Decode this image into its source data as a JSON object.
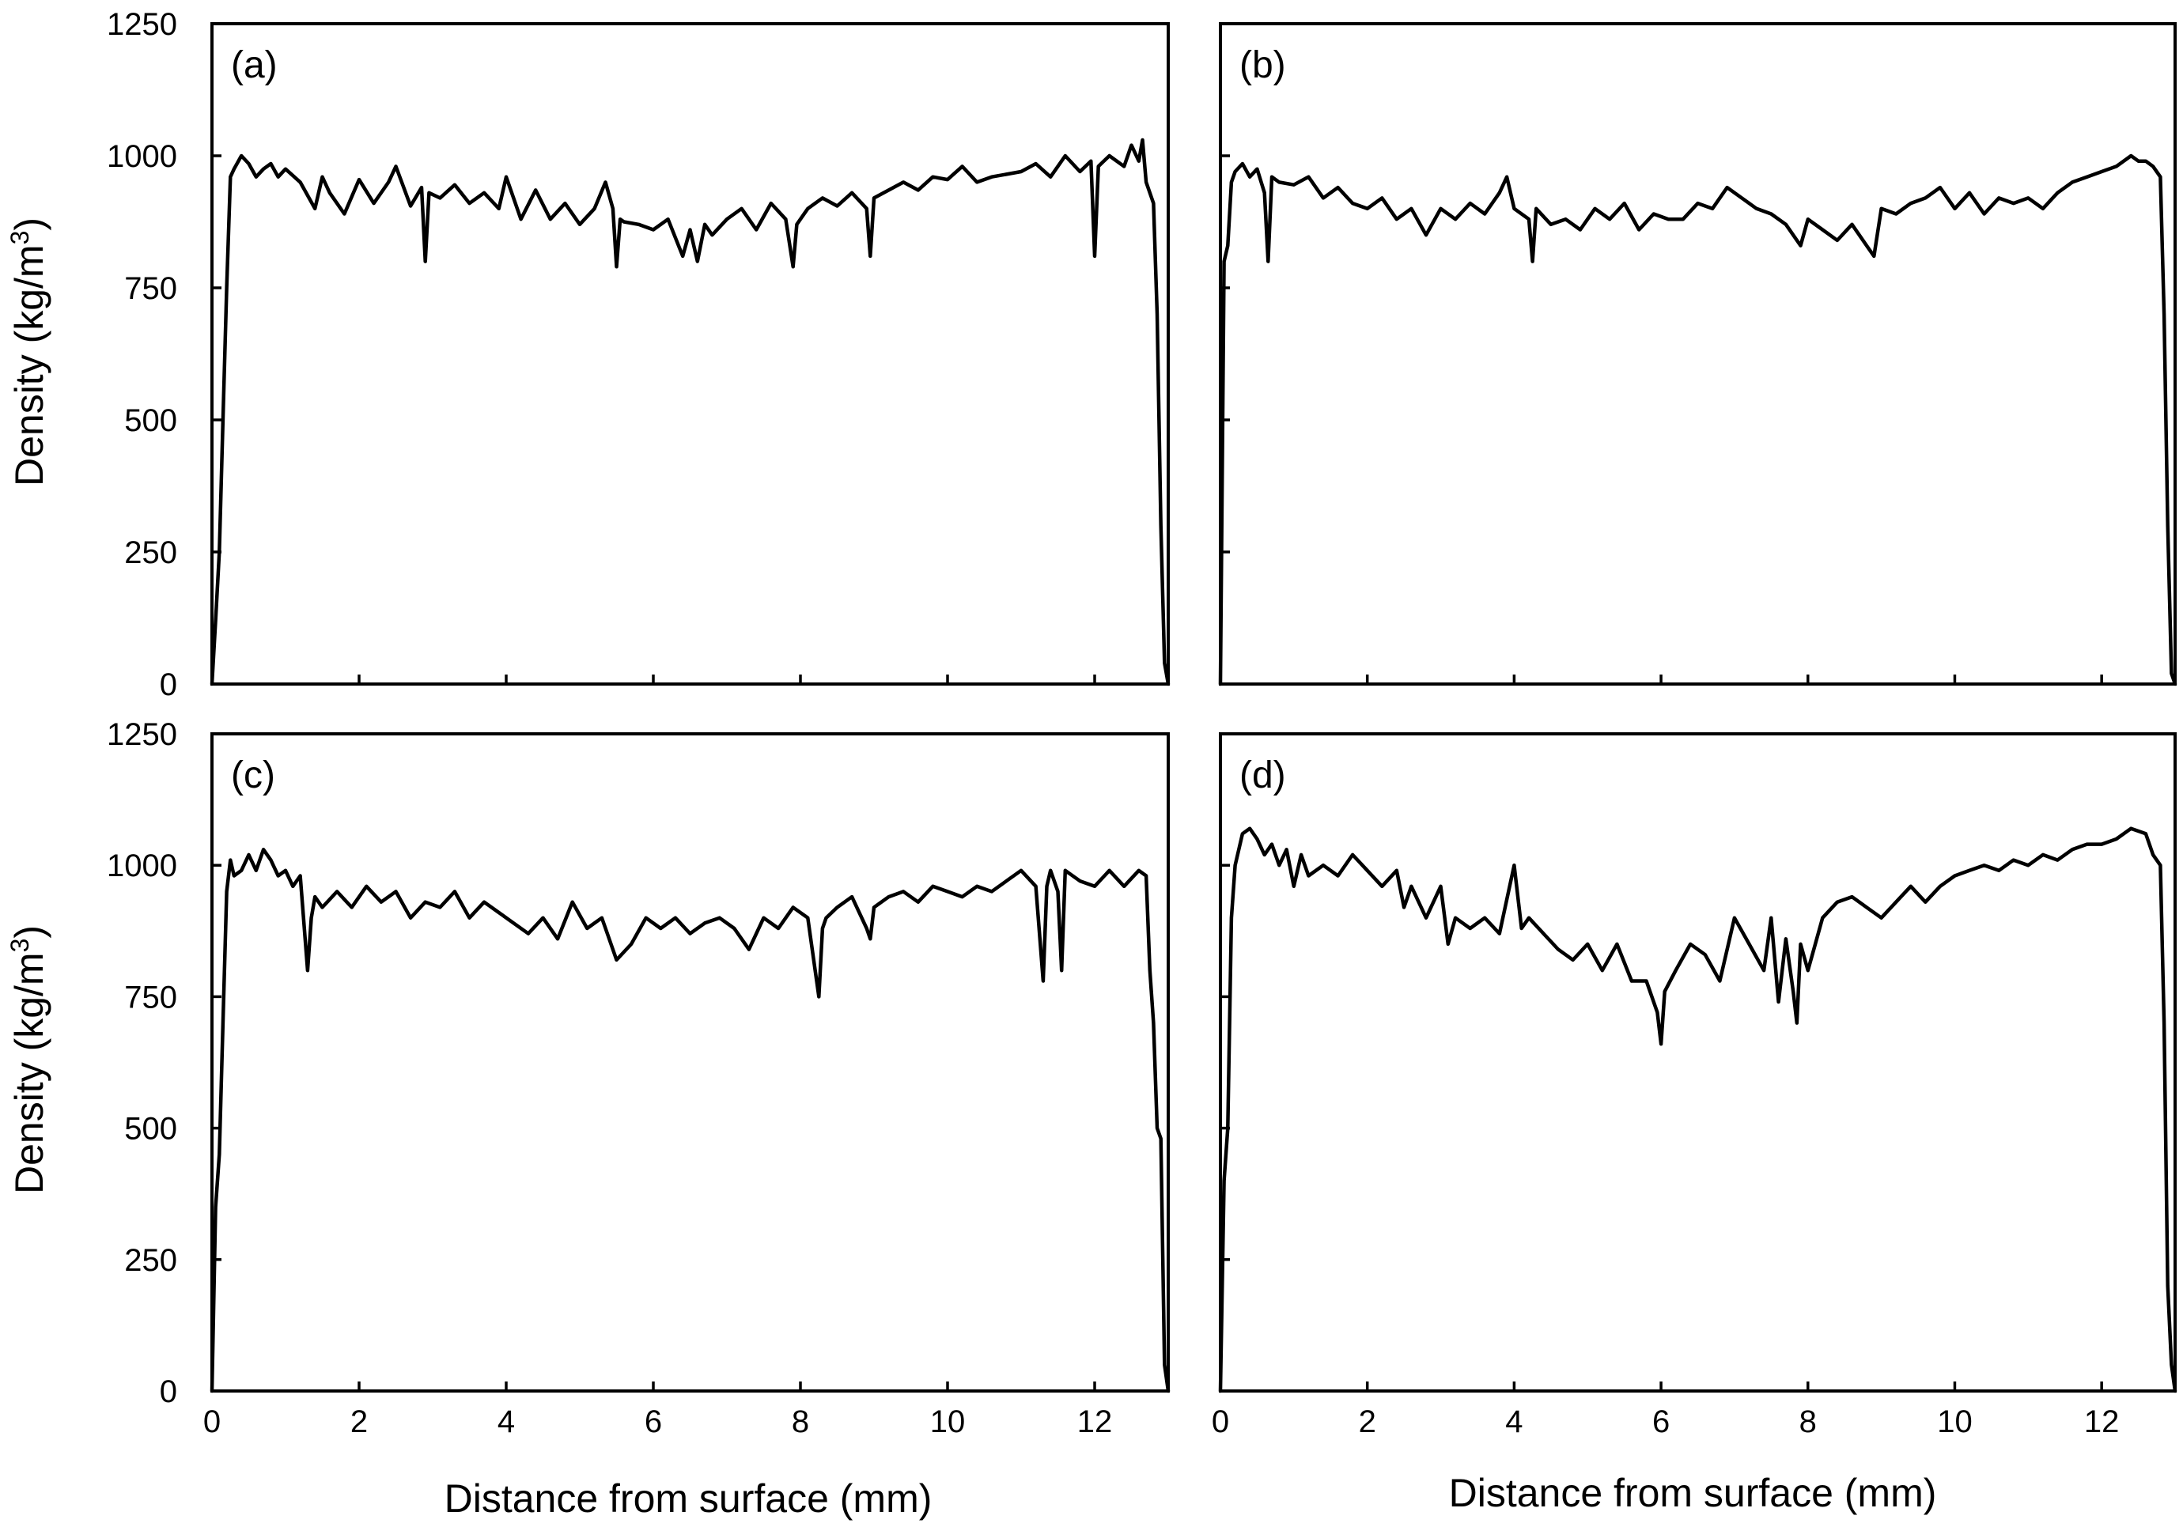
{
  "figure": {
    "xlabel": "Distance from surface (mm)",
    "ylabel_main": "Density (kg/m",
    "ylabel_sup": "3",
    "ylabel_end": ")"
  },
  "chart_data": [
    {
      "id": "a",
      "panel_label": "(a)",
      "type": "line",
      "xlabel": "",
      "ylabel": "Density (kg/m3)",
      "xlim": [
        0,
        13
      ],
      "ylim": [
        0,
        1250
      ],
      "xticks": [
        0,
        2,
        4,
        6,
        8,
        10,
        12
      ],
      "yticks": [
        0,
        250,
        500,
        750,
        1000,
        1250
      ],
      "show_xtick_labels": false,
      "show_ytick_labels": true,
      "series": [
        {
          "x": [
            0.0,
            0.05,
            0.1,
            0.15,
            0.2,
            0.25,
            0.3,
            0.4,
            0.5,
            0.6,
            0.7,
            0.8,
            0.9,
            1.0,
            1.2,
            1.4,
            1.5,
            1.6,
            1.8,
            2.0,
            2.2,
            2.4,
            2.5,
            2.7,
            2.85,
            2.9,
            2.95,
            3.1,
            3.3,
            3.5,
            3.7,
            3.9,
            4.0,
            4.2,
            4.4,
            4.6,
            4.8,
            5.0,
            5.2,
            5.35,
            5.45,
            5.5,
            5.55,
            5.6,
            5.8,
            6.0,
            6.2,
            6.4,
            6.5,
            6.6,
            6.7,
            6.8,
            7.0,
            7.2,
            7.4,
            7.6,
            7.8,
            7.9,
            7.95,
            8.1,
            8.3,
            8.5,
            8.7,
            8.9,
            8.95,
            9.0,
            9.2,
            9.4,
            9.6,
            9.8,
            10.0,
            10.2,
            10.4,
            10.6,
            10.8,
            11.0,
            11.2,
            11.4,
            11.6,
            11.8,
            11.95,
            12.0,
            12.05,
            12.2,
            12.4,
            12.5,
            12.6,
            12.65,
            12.7,
            12.8,
            12.85,
            12.9,
            12.95,
            13.0
          ],
          "y": [
            0,
            120,
            250,
            500,
            750,
            960,
            975,
            1000,
            985,
            960,
            975,
            985,
            960,
            975,
            950,
            900,
            960,
            930,
            890,
            955,
            910,
            950,
            980,
            905,
            940,
            800,
            930,
            920,
            945,
            910,
            930,
            900,
            960,
            880,
            935,
            880,
            910,
            870,
            900,
            950,
            900,
            790,
            880,
            875,
            870,
            860,
            880,
            810,
            860,
            800,
            870,
            850,
            880,
            900,
            860,
            910,
            880,
            790,
            870,
            900,
            920,
            905,
            930,
            900,
            810,
            920,
            935,
            950,
            935,
            960,
            955,
            980,
            950,
            960,
            965,
            970,
            985,
            960,
            1000,
            970,
            990,
            810,
            980,
            1000,
            980,
            1020,
            990,
            1030,
            950,
            910,
            700,
            300,
            40,
            0
          ]
        }
      ]
    },
    {
      "id": "b",
      "panel_label": "(b)",
      "type": "line",
      "xlabel": "",
      "ylabel": "",
      "xlim": [
        0,
        13
      ],
      "ylim": [
        0,
        1250
      ],
      "xticks": [
        0,
        2,
        4,
        6,
        8,
        10,
        12
      ],
      "yticks": [
        0,
        250,
        500,
        750,
        1000,
        1250
      ],
      "show_xtick_labels": false,
      "show_ytick_labels": false,
      "series": [
        {
          "x": [
            0.0,
            0.05,
            0.1,
            0.15,
            0.2,
            0.3,
            0.4,
            0.5,
            0.6,
            0.65,
            0.7,
            0.8,
            1.0,
            1.2,
            1.4,
            1.6,
            1.8,
            2.0,
            2.2,
            2.4,
            2.6,
            2.8,
            3.0,
            3.2,
            3.4,
            3.6,
            3.8,
            3.9,
            4.0,
            4.2,
            4.25,
            4.3,
            4.5,
            4.7,
            4.9,
            5.1,
            5.3,
            5.5,
            5.7,
            5.9,
            6.1,
            6.3,
            6.5,
            6.7,
            6.9,
            7.1,
            7.3,
            7.5,
            7.7,
            7.9,
            8.0,
            8.2,
            8.4,
            8.6,
            8.8,
            8.9,
            9.0,
            9.2,
            9.4,
            9.6,
            9.8,
            10.0,
            10.2,
            10.4,
            10.6,
            10.8,
            11.0,
            11.2,
            11.4,
            11.6,
            11.8,
            12.0,
            12.2,
            12.4,
            12.5,
            12.6,
            12.7,
            12.8,
            12.85,
            12.9,
            12.95,
            13.0
          ],
          "y": [
            0,
            800,
            830,
            950,
            970,
            985,
            960,
            975,
            930,
            800,
            960,
            950,
            945,
            960,
            920,
            940,
            910,
            900,
            920,
            880,
            900,
            850,
            900,
            880,
            910,
            890,
            930,
            960,
            900,
            880,
            800,
            900,
            870,
            880,
            860,
            900,
            880,
            910,
            860,
            890,
            880,
            880,
            910,
            900,
            940,
            920,
            900,
            890,
            870,
            830,
            880,
            860,
            840,
            870,
            830,
            810,
            900,
            890,
            910,
            920,
            940,
            900,
            930,
            890,
            920,
            910,
            920,
            900,
            930,
            950,
            960,
            970,
            980,
            1000,
            990,
            990,
            980,
            960,
            700,
            300,
            20,
            0
          ]
        }
      ]
    },
    {
      "id": "c",
      "panel_label": "(c)",
      "type": "line",
      "xlabel": "Distance from surface (mm)",
      "ylabel": "Density (kg/m3)",
      "xlim": [
        0,
        13
      ],
      "ylim": [
        0,
        1250
      ],
      "xticks": [
        0,
        2,
        4,
        6,
        8,
        10,
        12
      ],
      "yticks": [
        0,
        250,
        500,
        750,
        1000,
        1250
      ],
      "show_xtick_labels": true,
      "show_ytick_labels": true,
      "series": [
        {
          "x": [
            0.0,
            0.05,
            0.1,
            0.15,
            0.2,
            0.25,
            0.3,
            0.4,
            0.5,
            0.6,
            0.7,
            0.8,
            0.9,
            1.0,
            1.1,
            1.2,
            1.3,
            1.35,
            1.4,
            1.5,
            1.7,
            1.9,
            2.1,
            2.3,
            2.5,
            2.7,
            2.9,
            3.1,
            3.3,
            3.5,
            3.7,
            3.9,
            4.1,
            4.3,
            4.5,
            4.7,
            4.9,
            5.1,
            5.3,
            5.5,
            5.7,
            5.9,
            6.1,
            6.3,
            6.5,
            6.7,
            6.9,
            7.1,
            7.3,
            7.5,
            7.7,
            7.9,
            8.1,
            8.25,
            8.3,
            8.35,
            8.5,
            8.7,
            8.9,
            8.95,
            9.0,
            9.2,
            9.4,
            9.6,
            9.8,
            10.0,
            10.2,
            10.4,
            10.6,
            10.8,
            11.0,
            11.2,
            11.3,
            11.35,
            11.4,
            11.5,
            11.55,
            11.6,
            11.8,
            12.0,
            12.2,
            12.4,
            12.6,
            12.7,
            12.75,
            12.8,
            12.85,
            12.9,
            12.95,
            13.0
          ],
          "y": [
            0,
            350,
            450,
            700,
            950,
            1010,
            980,
            990,
            1020,
            990,
            1030,
            1010,
            980,
            990,
            960,
            980,
            800,
            900,
            940,
            920,
            950,
            920,
            960,
            930,
            950,
            900,
            930,
            920,
            950,
            900,
            930,
            910,
            890,
            870,
            900,
            860,
            930,
            880,
            900,
            820,
            850,
            900,
            880,
            900,
            870,
            890,
            900,
            880,
            840,
            900,
            880,
            920,
            900,
            750,
            880,
            900,
            920,
            940,
            880,
            860,
            920,
            940,
            950,
            930,
            960,
            950,
            940,
            960,
            950,
            970,
            990,
            960,
            780,
            960,
            990,
            950,
            800,
            990,
            970,
            960,
            990,
            960,
            990,
            980,
            800,
            700,
            500,
            480,
            50,
            0
          ]
        }
      ]
    },
    {
      "id": "d",
      "panel_label": "(d)",
      "type": "line",
      "xlabel": "Distance from surface (mm)",
      "ylabel": "",
      "xlim": [
        0,
        13
      ],
      "ylim": [
        0,
        1250
      ],
      "xticks": [
        0,
        2,
        4,
        6,
        8,
        10,
        12
      ],
      "yticks": [
        0,
        250,
        500,
        750,
        1000,
        1250
      ],
      "show_xtick_labels": true,
      "show_ytick_labels": false,
      "series": [
        {
          "x": [
            0.0,
            0.05,
            0.1,
            0.15,
            0.2,
            0.3,
            0.4,
            0.5,
            0.6,
            0.7,
            0.8,
            0.9,
            1.0,
            1.1,
            1.2,
            1.4,
            1.6,
            1.8,
            2.0,
            2.2,
            2.4,
            2.5,
            2.6,
            2.8,
            3.0,
            3.1,
            3.2,
            3.4,
            3.6,
            3.8,
            4.0,
            4.1,
            4.2,
            4.4,
            4.6,
            4.8,
            5.0,
            5.2,
            5.4,
            5.6,
            5.8,
            5.95,
            6.0,
            6.05,
            6.2,
            6.4,
            6.6,
            6.8,
            7.0,
            7.2,
            7.4,
            7.5,
            7.6,
            7.7,
            7.8,
            7.85,
            7.9,
            8.0,
            8.1,
            8.2,
            8.4,
            8.6,
            8.8,
            9.0,
            9.2,
            9.4,
            9.6,
            9.8,
            10.0,
            10.2,
            10.4,
            10.6,
            10.8,
            11.0,
            11.2,
            11.4,
            11.6,
            11.8,
            12.0,
            12.2,
            12.4,
            12.6,
            12.7,
            12.8,
            12.85,
            12.9,
            12.95,
            13.0
          ],
          "y": [
            0,
            400,
            500,
            900,
            1000,
            1060,
            1070,
            1050,
            1020,
            1040,
            1000,
            1030,
            960,
            1020,
            980,
            1000,
            980,
            1020,
            990,
            960,
            990,
            920,
            960,
            900,
            960,
            850,
            900,
            880,
            900,
            870,
            1000,
            880,
            900,
            870,
            840,
            820,
            850,
            800,
            850,
            780,
            780,
            720,
            660,
            760,
            800,
            850,
            830,
            780,
            900,
            850,
            800,
            900,
            740,
            860,
            760,
            700,
            850,
            800,
            850,
            900,
            930,
            940,
            920,
            900,
            930,
            960,
            930,
            960,
            980,
            990,
            1000,
            990,
            1010,
            1000,
            1020,
            1010,
            1030,
            1040,
            1040,
            1050,
            1070,
            1060,
            1020,
            1000,
            700,
            200,
            50,
            0
          ]
        }
      ]
    }
  ]
}
